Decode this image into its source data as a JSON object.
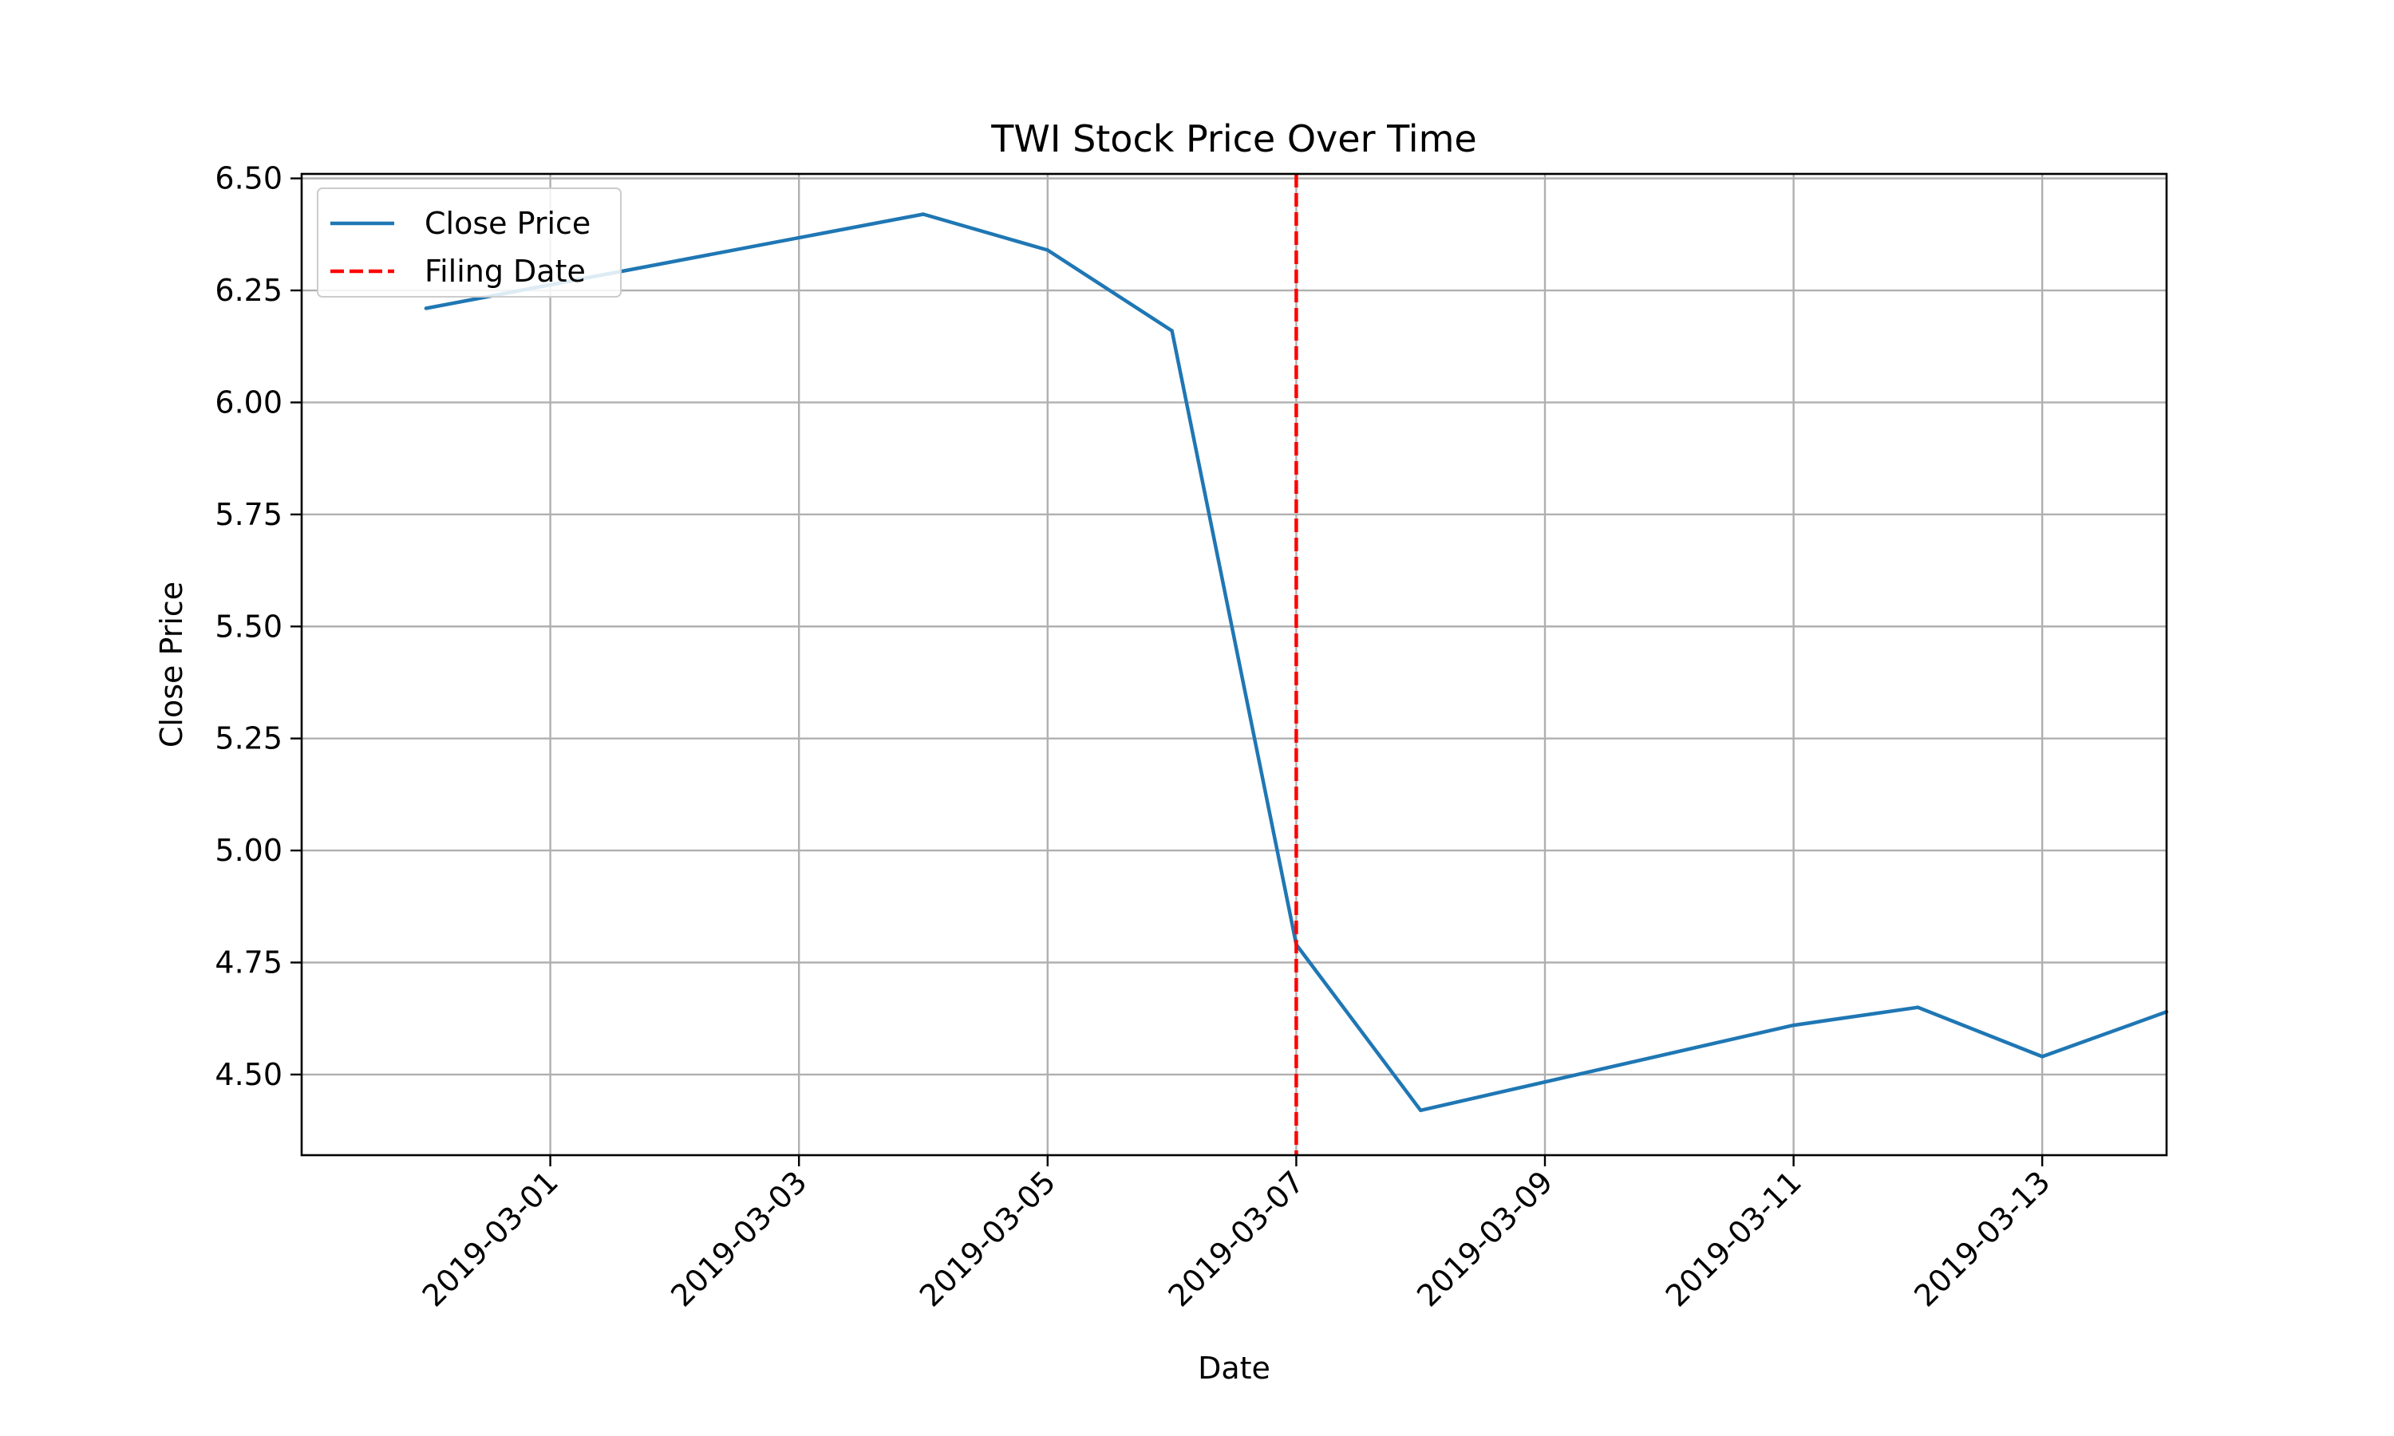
{
  "chart_data": {
    "type": "line",
    "title": "TWI Stock Price Over Time",
    "xlabel": "Date",
    "ylabel": "Close Price",
    "x_tick_labels": [
      "2019-03-01",
      "2019-03-03",
      "2019-03-05",
      "2019-03-07",
      "2019-03-09",
      "2019-03-11",
      "2019-03-13"
    ],
    "y_tick_labels": [
      "4.50",
      "4.75",
      "5.00",
      "5.25",
      "5.50",
      "5.75",
      "6.00",
      "6.25",
      "6.50"
    ],
    "xlim": [
      "2019-02-27",
      "2019-03-14"
    ],
    "ylim": [
      4.32,
      6.51
    ],
    "grid": true,
    "legend_position": "upper-left",
    "series": [
      {
        "name": "Close Price",
        "color": "#1f77b4",
        "style": "solid",
        "x": [
          "2019-02-28",
          "2019-03-04",
          "2019-03-05",
          "2019-03-06",
          "2019-03-07",
          "2019-03-08",
          "2019-03-11",
          "2019-03-12",
          "2019-03-13",
          "2019-03-14"
        ],
        "y": [
          6.21,
          6.42,
          6.34,
          6.16,
          4.79,
          4.42,
          4.61,
          4.65,
          4.54,
          4.64
        ]
      }
    ],
    "vlines": [
      {
        "name": "Filing Date",
        "x": "2019-03-07",
        "color": "#ff0000",
        "style": "dashed"
      }
    ]
  }
}
